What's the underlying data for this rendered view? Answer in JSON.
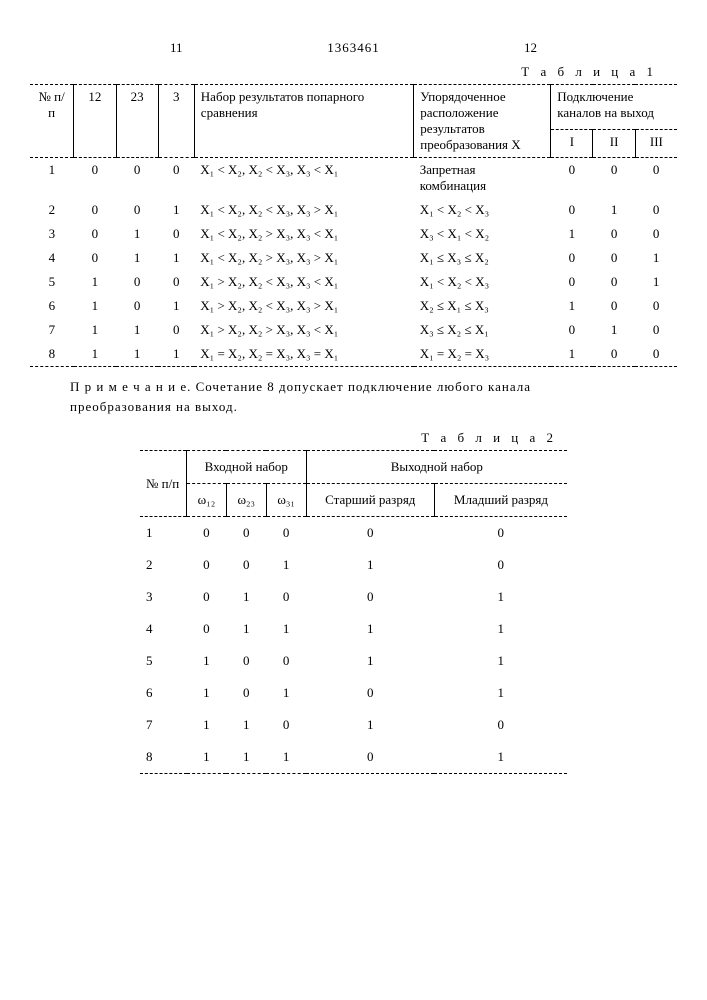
{
  "header": {
    "page_left": "11",
    "page_right": "12",
    "doc_id": "1363461"
  },
  "table1": {
    "label": "Т а б л и ц а 1",
    "head": {
      "c1": "№ п/п",
      "c2": "12",
      "c3": "23",
      "c4": "3",
      "c5": "Набор результатов попарного сравнения",
      "c6": "Упорядоченное расположение результатов преобразова­ния X",
      "c7": "Подключение каналов на выход",
      "c7a": "I",
      "c7b": "II",
      "c7c": "III"
    },
    "rows": [
      {
        "n": "1",
        "a": "0",
        "b": "0",
        "c": "0",
        "set": "X₁ < X₂,  X₂ < X₃,  X₃ < X₁",
        "ord": "Запретная комбинация",
        "i": "0",
        "ii": "0",
        "iii": "0"
      },
      {
        "n": "2",
        "a": "0",
        "b": "0",
        "c": "1",
        "set": "X₁ < X₂,  X₂ < X₃,  X₃ > X₁",
        "ord": "X₁ < X₂ < X₃",
        "i": "0",
        "ii": "1",
        "iii": "0"
      },
      {
        "n": "3",
        "a": "0",
        "b": "1",
        "c": "0",
        "set": "X₁ < X₂,  X₂ > X₃,  X₃ < X₁",
        "ord": "X₃ < X₁ < X₂",
        "i": "1",
        "ii": "0",
        "iii": "0"
      },
      {
        "n": "4",
        "a": "0",
        "b": "1",
        "c": "1",
        "set": "X₁ < X₂,  X₂ > X₃,  X₃ > X₁",
        "ord": "X₁ ≤ X₃ ≤ X₂",
        "i": "0",
        "ii": "0",
        "iii": "1"
      },
      {
        "n": "5",
        "a": "1",
        "b": "0",
        "c": "0",
        "set": "X₁ > X₂,  X₂ < X₃,  X₃ < X₁",
        "ord": "X₁  < X₂ < X₃",
        "i": "0",
        "ii": "0",
        "iii": "1"
      },
      {
        "n": "6",
        "a": "1",
        "b": "0",
        "c": "1",
        "set": "X₁ > X₂,  X₂ < X₃,  X₃ > X₁",
        "ord": "X₂ ≤ X₁ ≤ X₃",
        "i": "1",
        "ii": "0",
        "iii": "0"
      },
      {
        "n": "7",
        "a": "1",
        "b": "1",
        "c": "0",
        "set": "X₁ > X₂,  X₂ > X₃,  X₃ < X₁",
        "ord": "X₃ ≤ X₂ ≤ X₁",
        "i": "0",
        "ii": "1",
        "iii": "0"
      },
      {
        "n": "8",
        "a": "1",
        "b": "1",
        "c": "1",
        "set": "X₁ = X₂,  X₂ = X₃,  X₃ = X₁",
        "ord": "X₁ = X₂ = X₃",
        "i": "1",
        "ii": "0",
        "iii": "0"
      }
    ]
  },
  "note": "П р и м е ч а н и е. Сочетание 8 допускает подключение любого канала преобразования на выход.",
  "table2": {
    "label": "Т а б л и ц а 2",
    "head": {
      "c1": "№ п/п",
      "g1": "Входной набор",
      "g2": "Выходной набор",
      "w12": "ω₁₂",
      "w23": "ω₂₃",
      "w31": "ω₃₁",
      "hi": "Старший разряд",
      "lo": "Младший разряд"
    },
    "rows": [
      {
        "n": "1",
        "a": "0",
        "b": "0",
        "c": "0",
        "hi": "0",
        "lo": "0"
      },
      {
        "n": "2",
        "a": "0",
        "b": "0",
        "c": "1",
        "hi": "1",
        "lo": "0"
      },
      {
        "n": "3",
        "a": "0",
        "b": "1",
        "c": "0",
        "hi": "0",
        "lo": "1"
      },
      {
        "n": "4",
        "a": "0",
        "b": "1",
        "c": "1",
        "hi": "1",
        "lo": "1"
      },
      {
        "n": "5",
        "a": "1",
        "b": "0",
        "c": "0",
        "hi": "1",
        "lo": "1"
      },
      {
        "n": "6",
        "a": "1",
        "b": "0",
        "c": "1",
        "hi": "0",
        "lo": "1"
      },
      {
        "n": "7",
        "a": "1",
        "b": "1",
        "c": "0",
        "hi": "1",
        "lo": "0"
      },
      {
        "n": "8",
        "a": "1",
        "b": "1",
        "c": "1",
        "hi": "0",
        "lo": "1"
      }
    ]
  }
}
